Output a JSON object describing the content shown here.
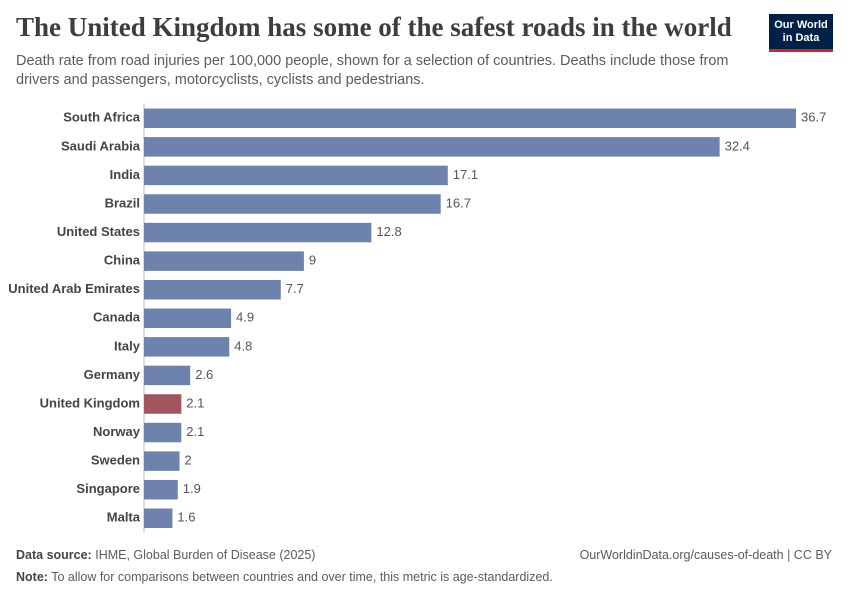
{
  "chart_data": {
    "type": "hbar",
    "title": "The United Kingdom has some of the safest roads in the world",
    "subtitle": "Death rate from road injuries per 100,000 people, shown for a selection of countries. Deaths include those from drivers and passengers, motorcyclists, cyclists and pedestrians.",
    "logo": [
      "Our World",
      "in Data"
    ],
    "source_label": "Data source:",
    "source": "IHME, Global Burden of Disease (2025)",
    "url": "OurWorldinData.org/causes-of-death | CC BY",
    "note_label": "Note:",
    "note": "To allow for comparisons between countries and over time, this metric is age-standardized.",
    "categories": [
      "South Africa",
      "Saudi Arabia",
      "India",
      "Brazil",
      "United States",
      "China",
      "United Arab Emirates",
      "Canada",
      "Italy",
      "Germany",
      "United Kingdom",
      "Norway",
      "Sweden",
      "Singapore",
      "Malta"
    ],
    "values": [
      36.7,
      32.4,
      17.1,
      16.7,
      12.8,
      9,
      7.7,
      4.9,
      4.8,
      2.6,
      2.1,
      2.1,
      2,
      1.9,
      1.6
    ],
    "colors": [
      "#6d83ae",
      "#6d83ae",
      "#6d83ae",
      "#6d83ae",
      "#6d83ae",
      "#6d83ae",
      "#6d83ae",
      "#6d83ae",
      "#6d83ae",
      "#6d83ae",
      "#a2545f",
      "#6d83ae",
      "#6d83ae",
      "#6d83ae",
      "#6d83ae"
    ]
  }
}
